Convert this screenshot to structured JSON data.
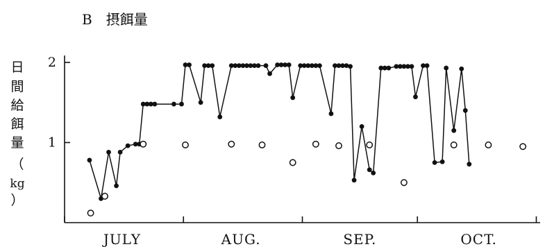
{
  "figure": {
    "panel_title": "B　摂餌量",
    "ylabel_chars": [
      "日",
      "間",
      "給",
      "餌",
      "量",
      "（",
      "kg",
      "）"
    ]
  },
  "chart_data": {
    "type": "line",
    "title": "B　摂餌量",
    "xlabel": "",
    "ylabel": "日間給餌量（kg）",
    "ylim": [
      0,
      2.2
    ],
    "xlim": [
      0,
      124
    ],
    "yticks": [
      {
        "value": 1,
        "label": "1"
      },
      {
        "value": 2,
        "label": "2"
      }
    ],
    "xtick_marks": [
      0,
      31,
      62,
      92,
      123
    ],
    "month_labels": [
      {
        "label": "JULY",
        "pos": 15
      },
      {
        "label": "AUG.",
        "pos": 46
      },
      {
        "label": "SEP.",
        "pos": 77
      },
      {
        "label": "OCT.",
        "pos": 108
      }
    ],
    "grid": false,
    "legend": "none",
    "series": [
      {
        "marker": "filled-circle-line",
        "color": "#111111",
        "points": [
          [
            6.5,
            0.78
          ],
          [
            9.5,
            0.3
          ],
          [
            11.5,
            0.88
          ],
          [
            13.5,
            0.46
          ],
          [
            14.5,
            0.88
          ],
          [
            16.5,
            0.96
          ],
          [
            18.5,
            0.98
          ],
          [
            19.5,
            0.98
          ],
          [
            20.5,
            1.48
          ],
          [
            21.5,
            1.48
          ],
          [
            22.5,
            1.48
          ],
          [
            23.5,
            1.48
          ],
          [
            28.5,
            1.48
          ],
          [
            30.5,
            1.48
          ],
          [
            31.5,
            1.97
          ],
          [
            32.5,
            1.97
          ],
          [
            35.5,
            1.5
          ],
          [
            36.5,
            1.96
          ],
          [
            37.5,
            1.96
          ],
          [
            38.5,
            1.96
          ],
          [
            40.5,
            1.32
          ],
          [
            43.5,
            1.96
          ],
          [
            44.5,
            1.96
          ],
          [
            45.5,
            1.96
          ],
          [
            46.5,
            1.96
          ],
          [
            47.5,
            1.96
          ],
          [
            48.5,
            1.96
          ],
          [
            49.5,
            1.96
          ],
          [
            50.5,
            1.96
          ],
          [
            52.5,
            1.96
          ],
          [
            53.5,
            1.86
          ],
          [
            55.5,
            1.97
          ],
          [
            56.5,
            1.97
          ],
          [
            57.5,
            1.97
          ],
          [
            58.5,
            1.97
          ],
          [
            59.5,
            1.56
          ],
          [
            61.5,
            1.96
          ],
          [
            62.5,
            1.96
          ],
          [
            63.5,
            1.96
          ],
          [
            64.5,
            1.96
          ],
          [
            65.5,
            1.96
          ],
          [
            66.5,
            1.96
          ],
          [
            69.5,
            1.36
          ],
          [
            70.5,
            1.96
          ],
          [
            71.5,
            1.96
          ],
          [
            72.5,
            1.96
          ],
          [
            73.5,
            1.96
          ],
          [
            74.5,
            1.95
          ],
          [
            75.5,
            0.53
          ],
          [
            77.5,
            1.2
          ],
          [
            79.5,
            0.66
          ],
          [
            80.5,
            0.62
          ],
          [
            82.5,
            1.93
          ],
          [
            83.5,
            1.93
          ],
          [
            84.5,
            1.93
          ],
          [
            86.5,
            1.95
          ],
          [
            87.5,
            1.95
          ],
          [
            88.5,
            1.95
          ],
          [
            89.5,
            1.95
          ],
          [
            90.5,
            1.95
          ],
          [
            91.5,
            1.57
          ],
          [
            93.5,
            1.96
          ],
          [
            94.5,
            1.96
          ],
          [
            96.5,
            0.75
          ],
          [
            98.5,
            0.76
          ],
          [
            99.5,
            1.93
          ],
          [
            101.5,
            1.15
          ],
          [
            103.5,
            1.92
          ],
          [
            104.5,
            1.4
          ],
          [
            105.5,
            0.73
          ]
        ]
      },
      {
        "marker": "open-circle",
        "points": [
          [
            6.8,
            0.12
          ],
          [
            10.5,
            0.33
          ],
          [
            20.5,
            0.98
          ],
          [
            31.5,
            0.97
          ],
          [
            43.5,
            0.98
          ],
          [
            51.5,
            0.97
          ],
          [
            59.5,
            0.75
          ],
          [
            65.5,
            0.98
          ],
          [
            71.5,
            0.96
          ],
          [
            79.5,
            0.97
          ],
          [
            88.5,
            0.5
          ],
          [
            101.5,
            0.97
          ],
          [
            110.5,
            0.97
          ],
          [
            119.5,
            0.95
          ]
        ]
      }
    ]
  }
}
